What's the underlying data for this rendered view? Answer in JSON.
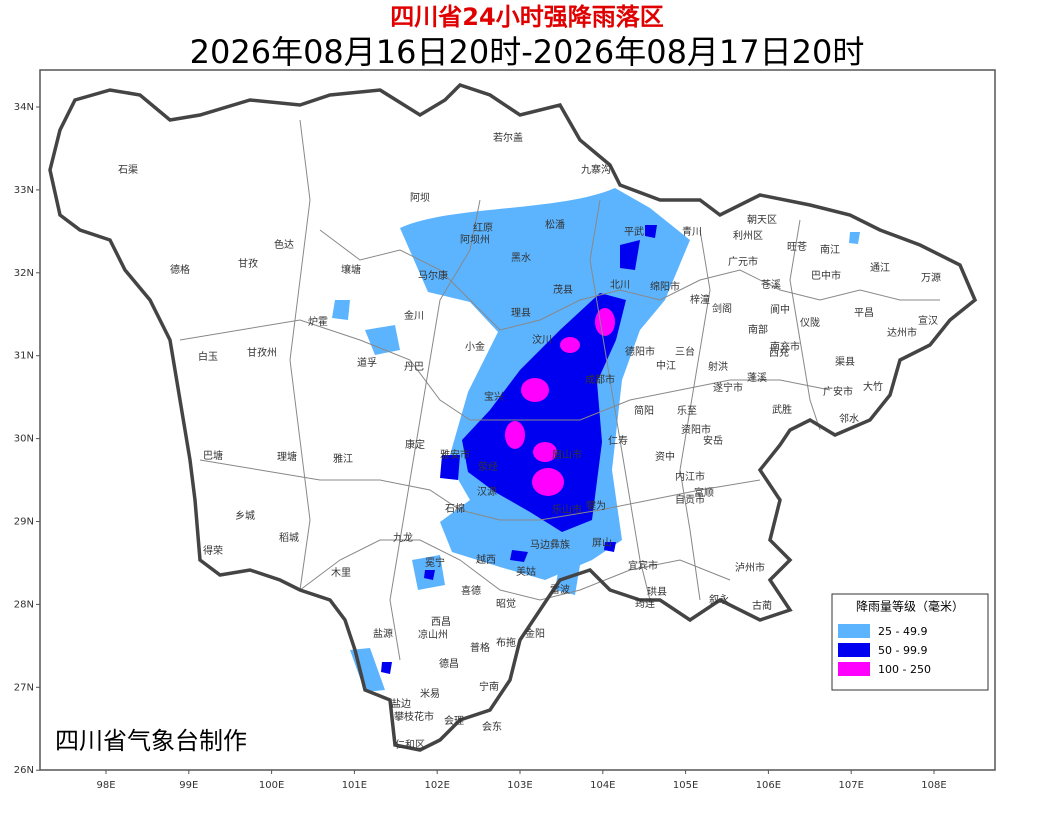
{
  "title": "四川省24小时强降雨落区",
  "subtitle": "2026年08月16日20时-2026年08月17日20时",
  "credit": "四川省气象台制作",
  "lat_ticks": [
    "34N",
    "33N",
    "32N",
    "31N",
    "30N",
    "29N",
    "28N",
    "27N",
    "26N"
  ],
  "lon_ticks": [
    "98E",
    "99E",
    "100E",
    "101E",
    "102E",
    "103E",
    "104E",
    "105E",
    "106E",
    "107E",
    "108E"
  ],
  "legend": {
    "title": "降雨量等级（毫米）",
    "items": [
      {
        "label": "25 - 49.9",
        "color": "#5cb4ff"
      },
      {
        "label": "50 - 99.9",
        "color": "#0000f0"
      },
      {
        "label": "100 - 250",
        "color": "#ff00ff"
      }
    ]
  },
  "places": [
    "若尔盖",
    "九寨沟",
    "石渠",
    "阿坝",
    "红原",
    "阿坝州",
    "松潘",
    "平武",
    "青川",
    "朝天区",
    "利州区",
    "旺苍",
    "南江",
    "色达",
    "壤塘",
    "黑水",
    "马尔康",
    "甘孜",
    "德格",
    "广元市",
    "巴中市",
    "通江",
    "万源",
    "茂县",
    "北川",
    "绵阳市",
    "苍溪",
    "梓潼",
    "理县",
    "金川",
    "炉霍",
    "平昌",
    "宣汉",
    "剑阁",
    "汶川",
    "小金",
    "阆中",
    "南部",
    "仪陇",
    "达州市",
    "甘孜州",
    "白玉",
    "道孚",
    "丹巴",
    "德阳市",
    "三台",
    "西充",
    "南充市",
    "渠县",
    "大竹",
    "中江",
    "射洪",
    "蓬溪",
    "遂宁市",
    "广安市",
    "邻水",
    "武胜",
    "宝兴",
    "成都市",
    "简阳",
    "乐至",
    "康定",
    "巴塘",
    "理塘",
    "雅江",
    "资阳市",
    "安岳",
    "仁寿",
    "雅安市",
    "眉山市",
    "资中",
    "内江市",
    "荥经",
    "汉源",
    "石棉",
    "自贡市",
    "富顺",
    "乐山市",
    "犍为",
    "宜宾市",
    "泸州市",
    "乡城",
    "稻城",
    "九龙",
    "越西",
    "美姑",
    "马边彝族",
    "屏山",
    "木里",
    "冕宁",
    "得荣",
    "喜德",
    "昭觉",
    "雷波",
    "筠连",
    "珙县",
    "叙永",
    "古蔺",
    "西昌",
    "盐源",
    "凉山州",
    "普格",
    "布拖",
    "金阳",
    "德昌",
    "宁南",
    "米易",
    "盐边",
    "攀枝花市",
    "会理",
    "会东",
    "仁和区"
  ]
}
